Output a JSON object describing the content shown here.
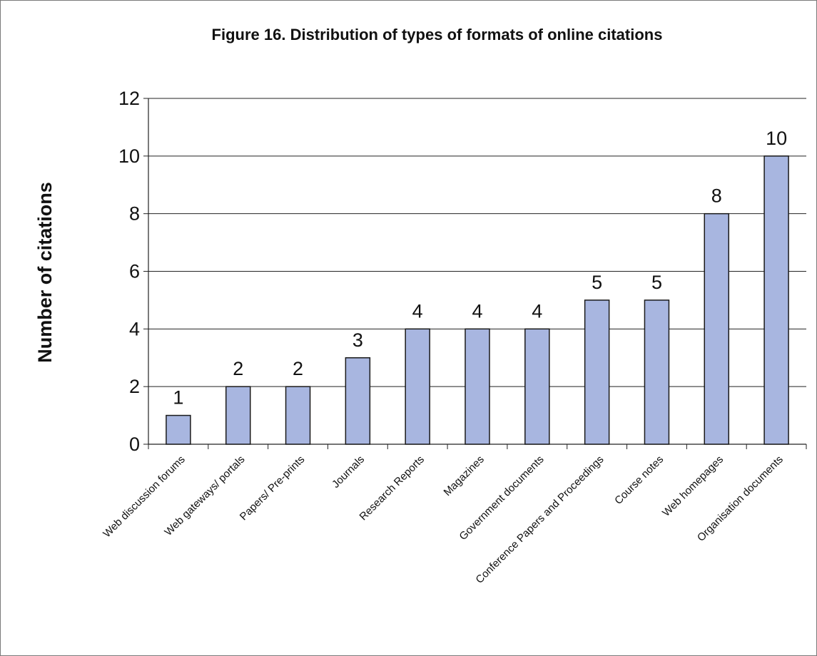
{
  "chart_data": {
    "type": "bar",
    "title": "Figure 16. Distribution of types of formats of online citations",
    "ylabel": "Number of citations",
    "xlabel": "",
    "categories": [
      "Web discussion forums",
      "Web gateways/ portals",
      "Papers/ Pre-prints",
      "Journals",
      "Research Reports",
      "Magazines",
      "Government documents",
      "Conference Papers and Proceedings",
      "Course notes",
      "Web homepages",
      "Organisation documents"
    ],
    "values": [
      1,
      2,
      2,
      3,
      4,
      4,
      4,
      5,
      5,
      8,
      10
    ],
    "ylim": [
      0,
      12
    ],
    "yticks": [
      0,
      2,
      4,
      6,
      8,
      10,
      12
    ],
    "grid": true,
    "legend": "none",
    "bar_color": "#a8b6e0",
    "bar_edge_color": "#1a1a1a"
  }
}
